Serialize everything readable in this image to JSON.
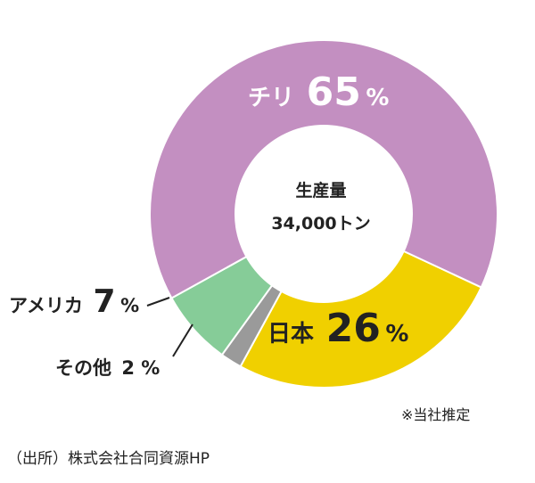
{
  "chart_data": {
    "type": "pie",
    "variant": "donut",
    "center_label": {
      "line1": "生産量",
      "line2": "34,000トン"
    },
    "slices": [
      {
        "name": "チリ",
        "value": 65,
        "display_value": "65",
        "unit": "%",
        "color": "#c38fc1",
        "label_color": "#ffffff"
      },
      {
        "name": "日本",
        "value": 26,
        "display_value": "26",
        "unit": "%",
        "color": "#f0d000",
        "label_color": "#222222"
      },
      {
        "name": "その他",
        "value": 2,
        "display_value": "2",
        "unit": "%",
        "color": "#9a9a9a",
        "label_color": "#222222"
      },
      {
        "name": "アメリカ",
        "value": 7,
        "display_value": "7",
        "unit": "%",
        "color": "#86cc98",
        "label_color": "#222222"
      }
    ]
  },
  "notes": {
    "estimate": "※当社推定",
    "source": "（出所）株式会社合同資源HP"
  }
}
